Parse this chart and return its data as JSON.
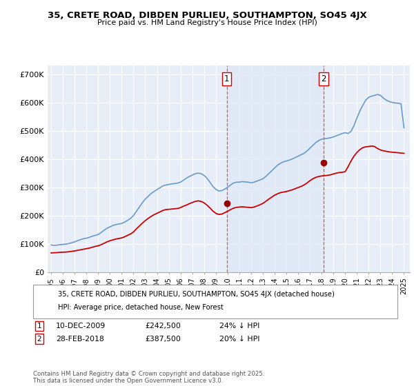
{
  "title1": "35, CRETE ROAD, DIBDEN PURLIEU, SOUTHAMPTON, SO45 4JX",
  "title2": "Price paid vs. HM Land Registry's House Price Index (HPI)",
  "xlim_start": 1994.7,
  "xlim_end": 2025.5,
  "ylim": [
    0,
    730000
  ],
  "yticks": [
    0,
    100000,
    200000,
    300000,
    400000,
    500000,
    600000,
    700000
  ],
  "ytick_labels": [
    "£0",
    "£100K",
    "£200K",
    "£300K",
    "£400K",
    "£500K",
    "£600K",
    "£700K"
  ],
  "legend_entry1": "35, CRETE ROAD, DIBDEN PURLIEU, SOUTHAMPTON, SO45 4JX (detached house)",
  "legend_entry2": "HPI: Average price, detached house, New Forest",
  "footnote": "Contains HM Land Registry data © Crown copyright and database right 2025.\nThis data is licensed under the Open Government Licence v3.0.",
  "marker1_date": 2009.94,
  "marker1_value": 242500,
  "marker2_date": 2018.17,
  "marker2_value": 387500,
  "vline1_x": 2009.94,
  "vline2_x": 2018.17,
  "line_color_red": "#cc0000",
  "line_color_blue": "#6699cc",
  "fill_color": "#dde8f5",
  "background_color": "#e8eef8",
  "grid_color": "#ffffff",
  "hpi_data_x": [
    1995.0,
    1995.25,
    1995.5,
    1995.75,
    1996.0,
    1996.25,
    1996.5,
    1996.75,
    1997.0,
    1997.25,
    1997.5,
    1997.75,
    1998.0,
    1998.25,
    1998.5,
    1998.75,
    1999.0,
    1999.25,
    1999.5,
    1999.75,
    2000.0,
    2000.25,
    2000.5,
    2000.75,
    2001.0,
    2001.25,
    2001.5,
    2001.75,
    2002.0,
    2002.25,
    2002.5,
    2002.75,
    2003.0,
    2003.25,
    2003.5,
    2003.75,
    2004.0,
    2004.25,
    2004.5,
    2004.75,
    2005.0,
    2005.25,
    2005.5,
    2005.75,
    2006.0,
    2006.25,
    2006.5,
    2006.75,
    2007.0,
    2007.25,
    2007.5,
    2007.75,
    2008.0,
    2008.25,
    2008.5,
    2008.75,
    2009.0,
    2009.25,
    2009.5,
    2009.75,
    2010.0,
    2010.25,
    2010.5,
    2010.75,
    2011.0,
    2011.25,
    2011.5,
    2011.75,
    2012.0,
    2012.25,
    2012.5,
    2012.75,
    2013.0,
    2013.25,
    2013.5,
    2013.75,
    2014.0,
    2014.25,
    2014.5,
    2014.75,
    2015.0,
    2015.25,
    2015.5,
    2015.75,
    2016.0,
    2016.25,
    2016.5,
    2016.75,
    2017.0,
    2017.25,
    2017.5,
    2017.75,
    2018.0,
    2018.25,
    2018.5,
    2018.75,
    2019.0,
    2019.25,
    2019.5,
    2019.75,
    2020.0,
    2020.25,
    2020.5,
    2020.75,
    2021.0,
    2021.25,
    2021.5,
    2021.75,
    2022.0,
    2022.25,
    2022.5,
    2022.75,
    2023.0,
    2023.25,
    2023.5,
    2023.75,
    2024.0,
    2024.25,
    2024.5,
    2024.75,
    2025.0
  ],
  "hpi_data_y": [
    96000,
    95000,
    95500,
    97000,
    98000,
    99000,
    101000,
    104000,
    107000,
    111000,
    115000,
    118000,
    120000,
    123000,
    127000,
    130000,
    133000,
    140000,
    148000,
    155000,
    160000,
    165000,
    168000,
    170000,
    172000,
    177000,
    183000,
    190000,
    200000,
    215000,
    230000,
    245000,
    258000,
    268000,
    278000,
    285000,
    292000,
    298000,
    305000,
    308000,
    310000,
    312000,
    313000,
    315000,
    318000,
    325000,
    332000,
    338000,
    343000,
    348000,
    350000,
    348000,
    342000,
    332000,
    318000,
    303000,
    293000,
    287000,
    288000,
    293000,
    300000,
    308000,
    315000,
    318000,
    318000,
    320000,
    319000,
    318000,
    316000,
    318000,
    322000,
    326000,
    330000,
    338000,
    348000,
    358000,
    368000,
    378000,
    385000,
    390000,
    393000,
    396000,
    400000,
    405000,
    410000,
    415000,
    420000,
    428000,
    438000,
    448000,
    458000,
    465000,
    470000,
    472000,
    473000,
    475000,
    478000,
    482000,
    486000,
    490000,
    493000,
    490000,
    498000,
    518000,
    545000,
    570000,
    590000,
    608000,
    618000,
    622000,
    625000,
    628000,
    625000,
    615000,
    608000,
    603000,
    600000,
    598000,
    597000,
    595000,
    510000
  ],
  "price_data_x": [
    1995.0,
    1995.25,
    1995.5,
    1995.75,
    1996.0,
    1996.25,
    1996.5,
    1996.75,
    1997.0,
    1997.25,
    1997.5,
    1997.75,
    1998.0,
    1998.25,
    1998.5,
    1998.75,
    1999.0,
    1999.25,
    1999.5,
    1999.75,
    2000.0,
    2000.25,
    2000.5,
    2000.75,
    2001.0,
    2001.25,
    2001.5,
    2001.75,
    2002.0,
    2002.25,
    2002.5,
    2002.75,
    2003.0,
    2003.25,
    2003.5,
    2003.75,
    2004.0,
    2004.25,
    2004.5,
    2004.75,
    2005.0,
    2005.25,
    2005.5,
    2005.75,
    2006.0,
    2006.25,
    2006.5,
    2006.75,
    2007.0,
    2007.25,
    2007.5,
    2007.75,
    2008.0,
    2008.25,
    2008.5,
    2008.75,
    2009.0,
    2009.25,
    2009.5,
    2009.75,
    2010.0,
    2010.25,
    2010.5,
    2010.75,
    2011.0,
    2011.25,
    2011.5,
    2011.75,
    2012.0,
    2012.25,
    2012.5,
    2012.75,
    2013.0,
    2013.25,
    2013.5,
    2013.75,
    2014.0,
    2014.25,
    2014.5,
    2014.75,
    2015.0,
    2015.25,
    2015.5,
    2015.75,
    2016.0,
    2016.25,
    2016.5,
    2016.75,
    2017.0,
    2017.25,
    2017.5,
    2017.75,
    2018.0,
    2018.25,
    2018.5,
    2018.75,
    2019.0,
    2019.25,
    2019.5,
    2019.75,
    2020.0,
    2020.25,
    2020.5,
    2020.75,
    2021.0,
    2021.25,
    2021.5,
    2021.75,
    2022.0,
    2022.25,
    2022.5,
    2022.75,
    2023.0,
    2023.25,
    2023.5,
    2023.75,
    2024.0,
    2024.25,
    2024.5,
    2024.75,
    2025.0
  ],
  "price_data_y": [
    68000,
    68500,
    69000,
    70000,
    70500,
    71000,
    72000,
    73500,
    75000,
    77000,
    79000,
    81000,
    83000,
    85000,
    88000,
    91000,
    93000,
    97000,
    102000,
    107000,
    111000,
    114000,
    117000,
    119000,
    121000,
    125000,
    130000,
    135000,
    142000,
    153000,
    163000,
    173000,
    182000,
    190000,
    197000,
    203000,
    208000,
    213000,
    218000,
    221000,
    222000,
    223000,
    224000,
    225000,
    228000,
    233000,
    237000,
    242000,
    246000,
    250000,
    252000,
    250000,
    245000,
    237000,
    227000,
    216000,
    208000,
    204000,
    205000,
    210000,
    215000,
    221000,
    226000,
    229000,
    230000,
    231000,
    230000,
    229000,
    228000,
    230000,
    234000,
    238000,
    243000,
    250000,
    258000,
    265000,
    272000,
    277000,
    281000,
    283000,
    285000,
    288000,
    291000,
    295000,
    299000,
    303000,
    308000,
    315000,
    323000,
    330000,
    335000,
    338000,
    340000,
    341000,
    342000,
    344000,
    347000,
    350000,
    352000,
    353000,
    355000,
    373000,
    393000,
    410000,
    423000,
    433000,
    440000,
    443000,
    444000,
    446000,
    444000,
    437000,
    432000,
    429000,
    427000,
    425000,
    424000,
    423000,
    422000,
    421000,
    420000
  ]
}
